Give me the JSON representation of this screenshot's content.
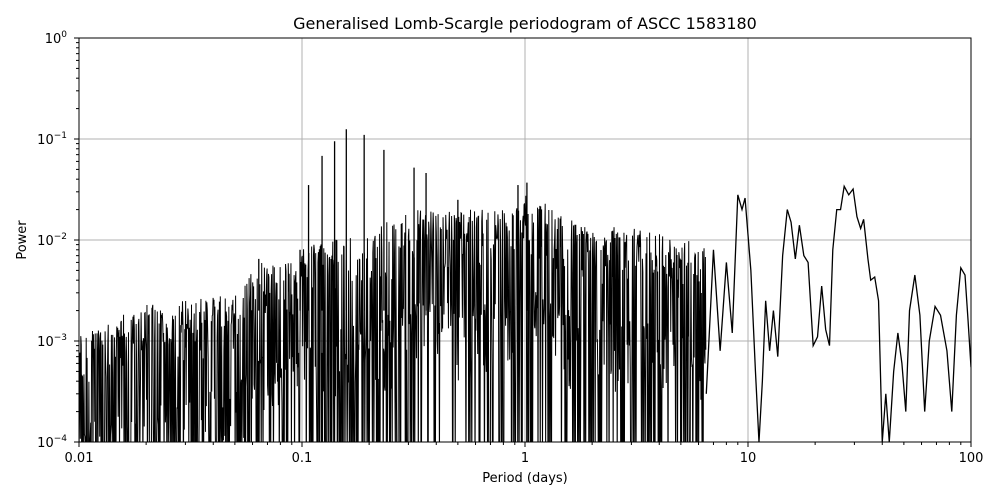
{
  "chart_data": {
    "type": "line",
    "title": "Generalised Lomb-Scargle periodogram of ASCC 1583180",
    "xlabel": "Period (days)",
    "ylabel": "Power",
    "xscale": "log",
    "yscale": "log",
    "xlim": [
      0.01,
      100
    ],
    "ylim": [
      0.0001,
      1
    ],
    "grid": true,
    "line_color": "#000000",
    "x_ticks": [
      {
        "value": 0.01,
        "label": "0.01"
      },
      {
        "value": 0.1,
        "label": "0.1"
      },
      {
        "value": 1,
        "label": "1"
      },
      {
        "value": 10,
        "label": "10"
      },
      {
        "value": 100,
        "label": "100"
      }
    ],
    "y_ticks": [
      {
        "value": 0.0001,
        "base": "10",
        "exp": "−4"
      },
      {
        "value": 0.001,
        "base": "10",
        "exp": "−3"
      },
      {
        "value": 0.01,
        "base": "10",
        "exp": "−2"
      },
      {
        "value": 0.1,
        "base": "10",
        "exp": "−1"
      },
      {
        "value": 1,
        "base": "10",
        "exp": "0"
      }
    ],
    "envelope_peaks": [
      {
        "x": 0.01,
        "y": 0.0012
      },
      {
        "x": 0.02,
        "y": 0.0023
      },
      {
        "x": 0.03,
        "y": 0.0025
      },
      {
        "x": 0.05,
        "y": 0.003
      },
      {
        "x": 0.065,
        "y": 0.006
      },
      {
        "x": 0.08,
        "y": 0.0055
      },
      {
        "x": 0.1,
        "y": 0.008
      },
      {
        "x": 0.15,
        "y": 0.012
      },
      {
        "x": 0.2,
        "y": 0.012
      },
      {
        "x": 0.3,
        "y": 0.02
      },
      {
        "x": 0.5,
        "y": 0.02
      },
      {
        "x": 0.8,
        "y": 0.02
      },
      {
        "x": 1.0,
        "y": 0.03
      },
      {
        "x": 1.5,
        "y": 0.018
      },
      {
        "x": 2.0,
        "y": 0.013
      },
      {
        "x": 3.0,
        "y": 0.014
      },
      {
        "x": 5.0,
        "y": 0.01
      }
    ],
    "spikes": [
      {
        "x": 0.064,
        "y": 0.0065
      },
      {
        "x": 0.098,
        "y": 0.008
      },
      {
        "x": 0.107,
        "y": 0.035
      },
      {
        "x": 0.123,
        "y": 0.068
      },
      {
        "x": 0.14,
        "y": 0.095
      },
      {
        "x": 0.158,
        "y": 0.125
      },
      {
        "x": 0.19,
        "y": 0.11
      },
      {
        "x": 0.233,
        "y": 0.078
      },
      {
        "x": 0.318,
        "y": 0.052
      },
      {
        "x": 0.36,
        "y": 0.046
      },
      {
        "x": 0.5,
        "y": 0.025
      },
      {
        "x": 0.93,
        "y": 0.035
      },
      {
        "x": 1.02,
        "y": 0.037
      }
    ],
    "long_period_curve": [
      {
        "x": 6.5,
        "y": 0.0003
      },
      {
        "x": 7.0,
        "y": 0.008
      },
      {
        "x": 7.5,
        "y": 0.0008
      },
      {
        "x": 8.0,
        "y": 0.006
      },
      {
        "x": 8.5,
        "y": 0.0012
      },
      {
        "x": 9.0,
        "y": 0.028
      },
      {
        "x": 9.4,
        "y": 0.02
      },
      {
        "x": 9.7,
        "y": 0.026
      },
      {
        "x": 10.3,
        "y": 0.005
      },
      {
        "x": 10.8,
        "y": 0.0005
      },
      {
        "x": 11.2,
        "y": 0.0001
      },
      {
        "x": 11.6,
        "y": 0.0004
      },
      {
        "x": 12.0,
        "y": 0.0025
      },
      {
        "x": 12.5,
        "y": 0.0008
      },
      {
        "x": 13.0,
        "y": 0.002
      },
      {
        "x": 13.6,
        "y": 0.0007
      },
      {
        "x": 14.3,
        "y": 0.007
      },
      {
        "x": 15.0,
        "y": 0.02
      },
      {
        "x": 15.6,
        "y": 0.015
      },
      {
        "x": 16.3,
        "y": 0.0065
      },
      {
        "x": 17.0,
        "y": 0.014
      },
      {
        "x": 17.8,
        "y": 0.007
      },
      {
        "x": 18.6,
        "y": 0.006
      },
      {
        "x": 19.6,
        "y": 0.0009
      },
      {
        "x": 20.5,
        "y": 0.0011
      },
      {
        "x": 21.4,
        "y": 0.0035
      },
      {
        "x": 22.3,
        "y": 0.0013
      },
      {
        "x": 23.2,
        "y": 0.0009
      },
      {
        "x": 24.0,
        "y": 0.008
      },
      {
        "x": 25.0,
        "y": 0.02
      },
      {
        "x": 26.0,
        "y": 0.02
      },
      {
        "x": 27.0,
        "y": 0.034
      },
      {
        "x": 28.3,
        "y": 0.028
      },
      {
        "x": 29.6,
        "y": 0.032
      },
      {
        "x": 30.8,
        "y": 0.017
      },
      {
        "x": 32.0,
        "y": 0.013
      },
      {
        "x": 33.0,
        "y": 0.016
      },
      {
        "x": 34.5,
        "y": 0.0065
      },
      {
        "x": 35.5,
        "y": 0.004
      },
      {
        "x": 37.0,
        "y": 0.0043
      },
      {
        "x": 38.5,
        "y": 0.0025
      },
      {
        "x": 40.0,
        "y": 0.0001
      },
      {
        "x": 41.5,
        "y": 0.0003
      },
      {
        "x": 43.0,
        "y": 0.0001
      },
      {
        "x": 45.0,
        "y": 0.0005
      },
      {
        "x": 47.0,
        "y": 0.0012
      },
      {
        "x": 49.0,
        "y": 0.0006
      },
      {
        "x": 51.0,
        "y": 0.0002
      },
      {
        "x": 53.0,
        "y": 0.002
      },
      {
        "x": 56.0,
        "y": 0.0045
      },
      {
        "x": 59.0,
        "y": 0.0018
      },
      {
        "x": 62.0,
        "y": 0.0002
      },
      {
        "x": 65.0,
        "y": 0.001
      },
      {
        "x": 69.0,
        "y": 0.0022
      },
      {
        "x": 73.0,
        "y": 0.0018
      },
      {
        "x": 78.0,
        "y": 0.0008
      },
      {
        "x": 82.0,
        "y": 0.0002
      },
      {
        "x": 86.0,
        "y": 0.0018
      },
      {
        "x": 90.0,
        "y": 0.0053
      },
      {
        "x": 94.0,
        "y": 0.0045
      },
      {
        "x": 97.0,
        "y": 0.0016
      },
      {
        "x": 100.0,
        "y": 0.00055
      }
    ]
  }
}
